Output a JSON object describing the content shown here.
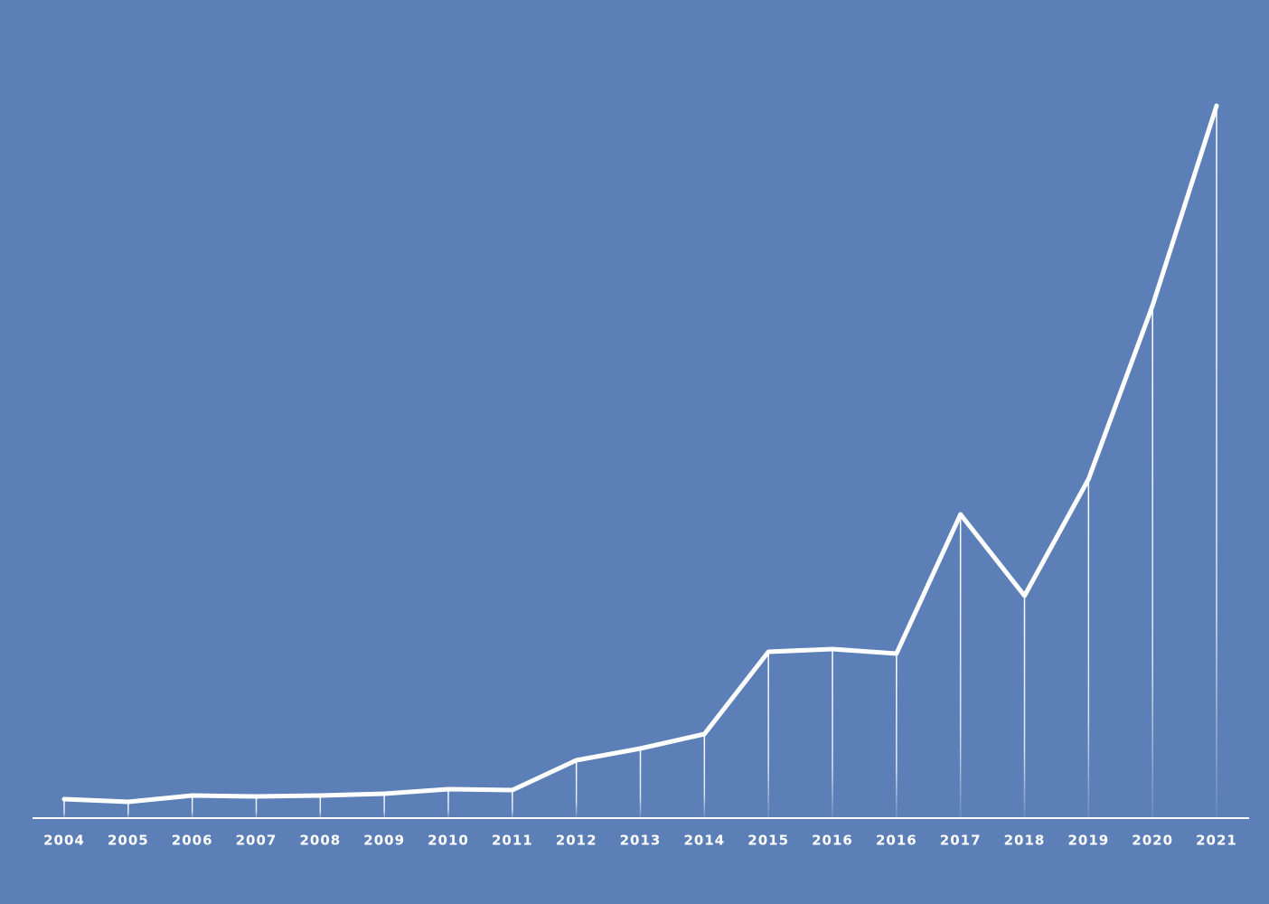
{
  "chart_data": {
    "type": "line",
    "categories": [
      "2004",
      "2005",
      "2006",
      "2007",
      "2008",
      "2009",
      "2010",
      "2011",
      "2012",
      "2013",
      "2014",
      "2015",
      "2016",
      "2016",
      "2017",
      "2018",
      "2019",
      "2020",
      "2021"
    ],
    "values": [
      21,
      18,
      25,
      24,
      25,
      27,
      32,
      31,
      64,
      77,
      93,
      184,
      187,
      182,
      336,
      246,
      375,
      567,
      788
    ],
    "color": "#ffffff",
    "ylim": [
      0,
      800
    ]
  }
}
